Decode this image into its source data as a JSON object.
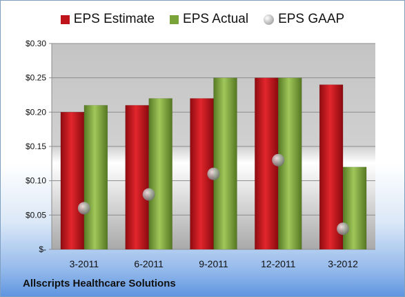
{
  "chart_data": {
    "type": "bar",
    "title": "",
    "xlabel": "",
    "ylabel": "",
    "categories": [
      "3-2011",
      "6-2011",
      "9-2011",
      "12-2011",
      "3-2012"
    ],
    "ylim": [
      0,
      0.3
    ],
    "yticks": [
      0,
      0.05,
      0.1,
      0.15,
      0.2,
      0.25,
      0.3
    ],
    "ytick_labels": [
      "$-",
      "$0.05",
      "$0.10",
      "$0.15",
      "$0.20",
      "$0.25",
      "$0.30"
    ],
    "legend_position": "top",
    "grid": true,
    "series": [
      {
        "name": "EPS Estimate",
        "kind": "bar",
        "color": "#c0141c",
        "values": [
          0.2,
          0.21,
          0.22,
          0.25,
          0.24
        ]
      },
      {
        "name": "EPS Actual",
        "kind": "bar",
        "color": "#7aa33a",
        "values": [
          0.21,
          0.22,
          0.25,
          0.25,
          0.12
        ]
      },
      {
        "name": "EPS GAAP",
        "kind": "marker",
        "color": "#9a9a9a",
        "values": [
          0.06,
          0.08,
          0.11,
          0.13,
          0.03
        ]
      }
    ]
  },
  "footer": {
    "company": "Allscripts Healthcare Solutions"
  }
}
